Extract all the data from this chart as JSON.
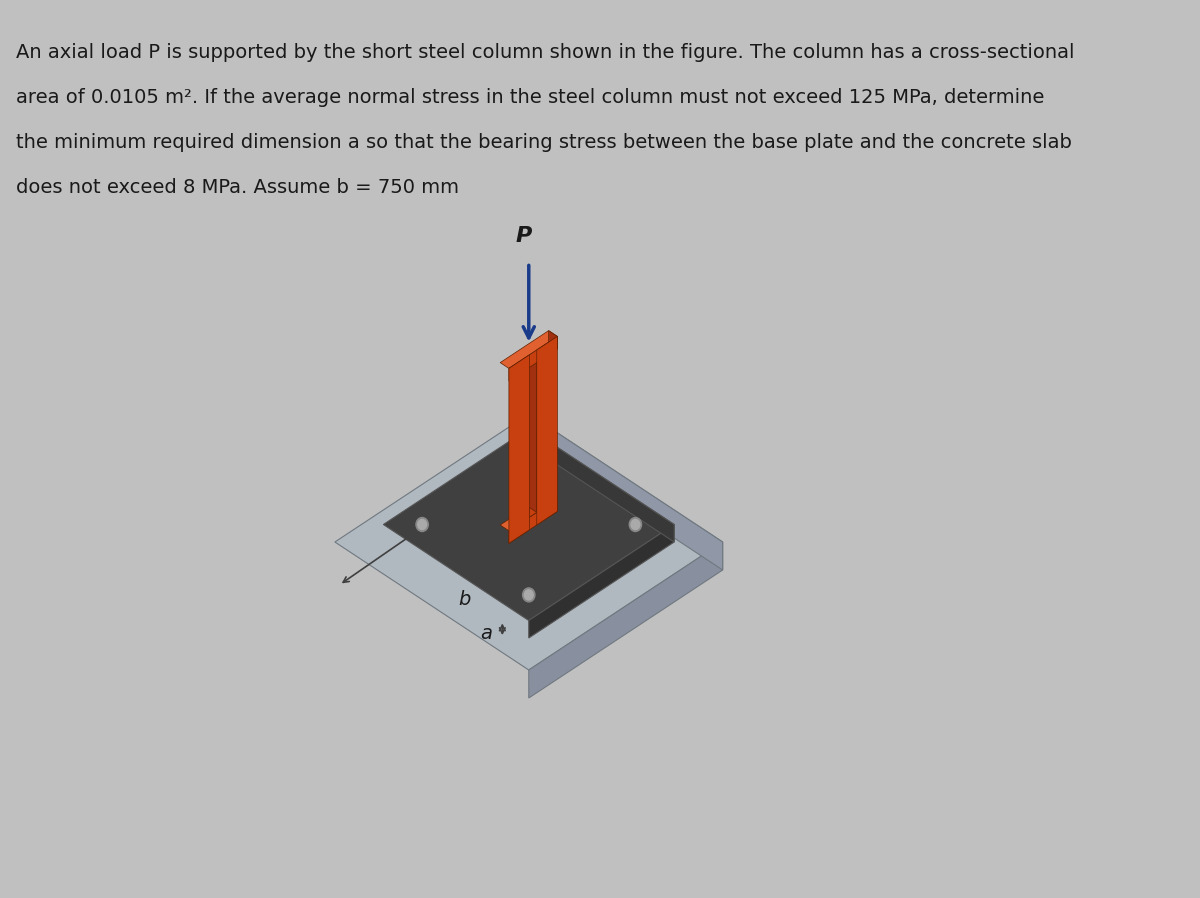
{
  "bg_color": "#c8c8c8",
  "text_color": "#1a1a1a",
  "problem_text_line1": "An axial load P is supported by the short steel column shown in the figure. The column has a cross-sectional",
  "problem_text_line2": "area of 0.0105 m². If the average normal stress in the steel column must not exceed 125 MPa, determine",
  "problem_text_line3": "the minimum required dimension a so that the bearing stress between the base plate and the concrete slab",
  "problem_text_line4": "does not exceed 8 MPa. Assume b = 750 mm",
  "label_P": "P",
  "label_a": "a",
  "label_b": "b",
  "column_color_front": "#c84010",
  "column_color_side": "#a03010",
  "column_color_top": "#e06030",
  "base_plate_top": "#404040",
  "base_plate_front": "#303030",
  "base_plate_side": "#383838",
  "concrete_top": "#b0b8c0",
  "concrete_front": "#8890a0",
  "concrete_side": "#9098a8",
  "arrow_color": "#1a3a8a",
  "dim_color": "#404040",
  "font_size_text": 14,
  "font_size_labels": 13,
  "figure_bg": "#c0c0c0"
}
